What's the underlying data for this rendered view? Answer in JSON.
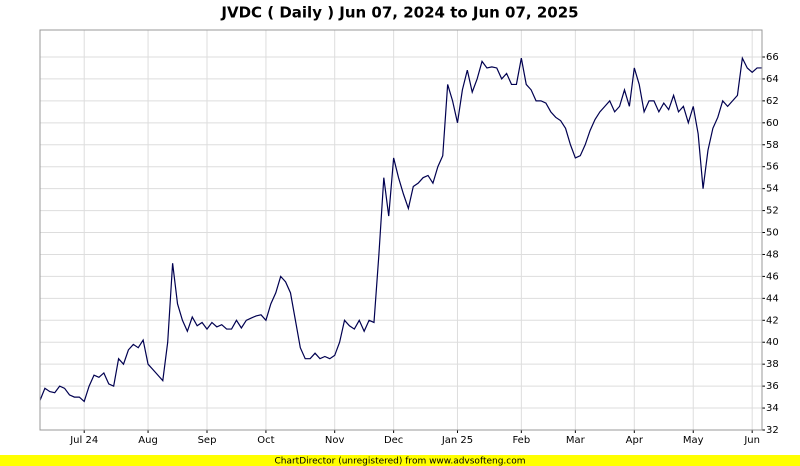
{
  "chart_data": {
    "type": "line",
    "title": "JVDC ( Daily ) Jun 07, 2024 to Jun 07, 2025",
    "categories": [
      null,
      null,
      null,
      null,
      null,
      null,
      null,
      null,
      null,
      "Jul 24",
      null,
      null,
      null,
      null,
      null,
      null,
      null,
      null,
      null,
      null,
      null,
      null,
      "Aug",
      null,
      null,
      null,
      null,
      null,
      null,
      null,
      null,
      null,
      null,
      null,
      "Sep",
      null,
      null,
      null,
      null,
      null,
      null,
      null,
      null,
      null,
      null,
      null,
      "Oct",
      null,
      null,
      null,
      null,
      null,
      null,
      null,
      null,
      null,
      null,
      null,
      null,
      null,
      "Nov",
      null,
      null,
      null,
      null,
      null,
      null,
      null,
      null,
      null,
      null,
      null,
      "Dec",
      null,
      null,
      null,
      null,
      null,
      null,
      null,
      null,
      null,
      null,
      null,
      null,
      "Jan 25",
      null,
      null,
      null,
      null,
      null,
      null,
      null,
      null,
      null,
      null,
      null,
      null,
      "Feb",
      null,
      null,
      null,
      null,
      null,
      null,
      null,
      null,
      null,
      null,
      "Mar",
      null,
      null,
      null,
      null,
      null,
      null,
      null,
      null,
      null,
      null,
      null,
      "Apr",
      null,
      null,
      null,
      null,
      null,
      null,
      null,
      null,
      null,
      null,
      null,
      "May",
      null,
      null,
      null,
      null,
      null,
      null,
      null,
      null,
      null,
      null,
      null,
      "Jun",
      null,
      null
    ],
    "values": [
      34.7,
      35.8,
      35.5,
      35.4,
      36,
      35.8,
      35.2,
      35,
      35,
      34.6,
      36,
      37,
      36.8,
      37.2,
      36.2,
      36,
      38.5,
      38,
      39.3,
      39.8,
      39.5,
      40.2,
      38,
      37.5,
      37,
      36.5,
      40,
      47.2,
      43.5,
      42,
      41,
      42.3,
      41.5,
      41.8,
      41.2,
      41.8,
      41.4,
      41.6,
      41.2,
      41.2,
      42,
      41.3,
      42,
      42.2,
      42.4,
      42.5,
      42,
      43.5,
      44.5,
      46,
      45.5,
      44.5,
      42,
      39.5,
      38.5,
      38.5,
      39,
      38.5,
      38.7,
      38.5,
      38.8,
      40,
      42,
      41.5,
      41.2,
      42,
      41,
      42,
      41.8,
      48,
      55,
      51.5,
      56.8,
      55,
      53.5,
      52.2,
      54.2,
      54.5,
      55,
      55.2,
      54.5,
      56,
      57,
      63.5,
      62,
      60,
      63,
      64.8,
      62.8,
      64,
      65.6,
      65,
      65.1,
      65,
      64,
      64.5,
      63.5,
      63.5,
      65.9,
      63.5,
      63,
      62,
      62,
      61.8,
      61,
      60.5,
      60.2,
      59.5,
      58,
      56.8,
      57,
      58,
      59.3,
      60.3,
      61,
      61.5,
      62,
      61,
      61.5,
      63,
      61.5,
      65,
      63.5,
      61,
      62,
      62,
      61,
      61.8,
      61.2,
      62.5,
      61,
      61.5,
      60,
      61.5,
      59,
      54,
      57.5,
      59.5,
      60.5,
      62,
      61.5,
      62,
      62.5,
      65.9,
      65,
      64.6,
      65,
      65
    ],
    "color": "#000050",
    "ylim": [
      32,
      68.46
    ],
    "yticks": [
      32,
      34,
      36,
      38,
      40,
      42,
      44,
      46,
      48,
      50,
      52,
      54,
      56,
      58,
      60,
      62,
      64,
      66
    ],
    "grid": true
  },
  "footer": "ChartDirector (unregistered) from www.advsofteng.com"
}
